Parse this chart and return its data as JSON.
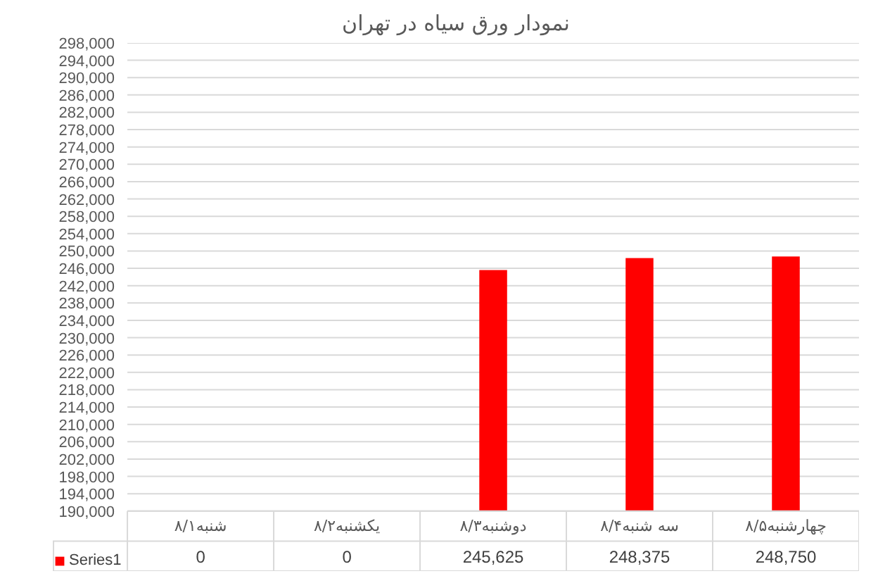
{
  "chart_data": {
    "type": "bar",
    "title": "نمودار ورق سیاه در تهران",
    "categories": [
      "شنبه۸/۱",
      "یکشنبه۸/۲",
      "دوشنبه۸/۳",
      "سه شنبه۸/۴",
      "چهارشنبه۸/۵"
    ],
    "series": [
      {
        "name": "Series1",
        "color": "#ff0000",
        "values": [
          null,
          null,
          245625,
          248375,
          248750
        ],
        "value_labels": [
          "0",
          "0",
          "245,625",
          "248,375",
          "248,750"
        ]
      }
    ],
    "ylim": [
      190000,
      298000
    ],
    "yticks": [
      {
        "value": 190000,
        "label": "190,000"
      },
      {
        "value": 194000,
        "label": "194,000"
      },
      {
        "value": 198000,
        "label": "198,000"
      },
      {
        "value": 202000,
        "label": "202,000"
      },
      {
        "value": 206000,
        "label": "206,000"
      },
      {
        "value": 210000,
        "label": "210,000"
      },
      {
        "value": 214000,
        "label": "214,000"
      },
      {
        "value": 218000,
        "label": "218,000"
      },
      {
        "value": 222000,
        "label": "222,000"
      },
      {
        "value": 226000,
        "label": "226,000"
      },
      {
        "value": 230000,
        "label": "230,000"
      },
      {
        "value": 234000,
        "label": "234,000"
      },
      {
        "value": 238000,
        "label": "238,000"
      },
      {
        "value": 242000,
        "label": "242,000"
      },
      {
        "value": 246000,
        "label": "246,000"
      },
      {
        "value": 250000,
        "label": "250,000"
      },
      {
        "value": 254000,
        "label": "254,000"
      },
      {
        "value": 258000,
        "label": "258,000"
      },
      {
        "value": 262000,
        "label": "262,000"
      },
      {
        "value": 266000,
        "label": "266,000"
      },
      {
        "value": 270000,
        "label": "270,000"
      },
      {
        "value": 274000,
        "label": "274,000"
      },
      {
        "value": 278000,
        "label": "278,000"
      },
      {
        "value": 282000,
        "label": "282,000"
      },
      {
        "value": 286000,
        "label": "286,000"
      },
      {
        "value": 290000,
        "label": "290,000"
      },
      {
        "value": 294000,
        "label": "294,000"
      },
      {
        "value": 298000,
        "label": "298,000"
      }
    ],
    "grid": "y",
    "legend": "bottom"
  }
}
